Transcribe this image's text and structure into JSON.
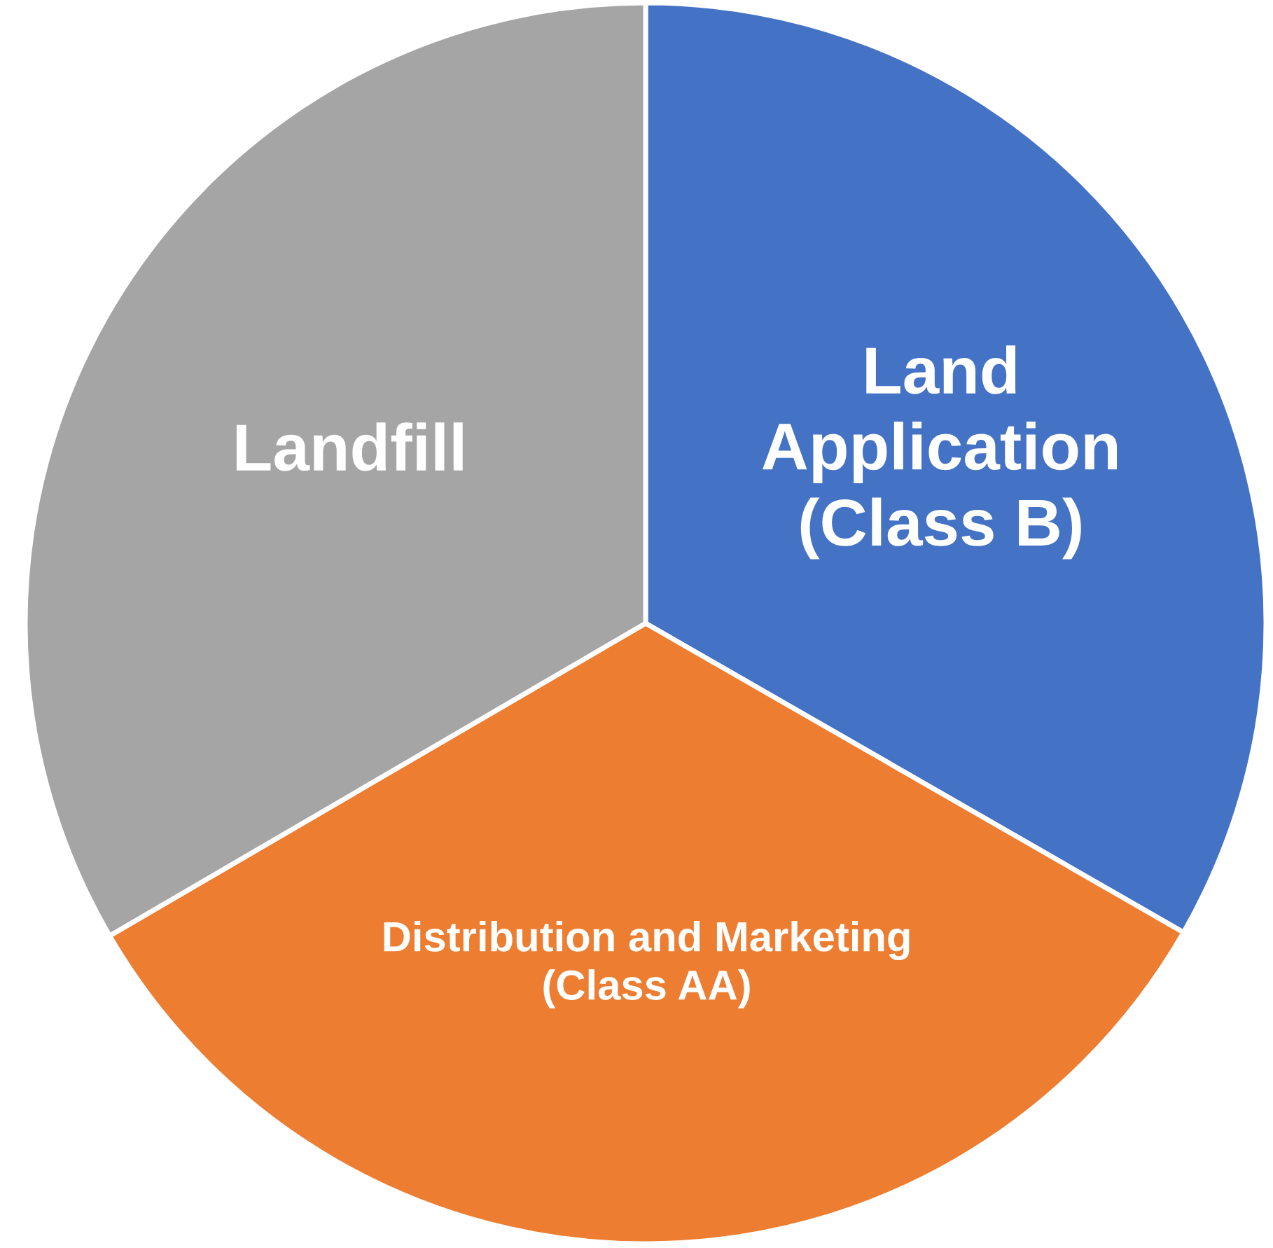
{
  "chart_data": {
    "type": "pie",
    "categories": [
      "Land\nApplication\n(Class B)",
      "Distribution and Marketing\n(Class AA)",
      "Landfill"
    ],
    "values": [
      33.3,
      33.3,
      33.4
    ],
    "colors": [
      "#4472c4",
      "#ed7d31",
      "#a5a5a5"
    ],
    "legend": false
  }
}
